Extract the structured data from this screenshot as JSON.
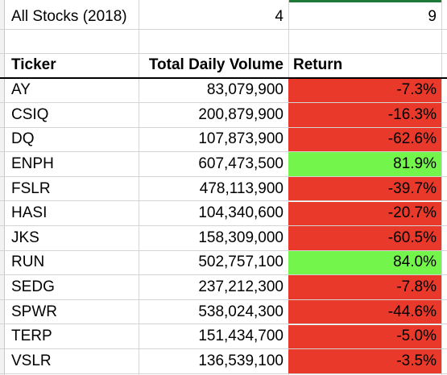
{
  "sheet": {
    "title_cell": "All Stocks (2018)",
    "cell_b1": "4",
    "cell_c1": "9",
    "headers": {
      "ticker": "Ticker",
      "volume": "Total Daily Volume",
      "return": "Return"
    },
    "rows": [
      {
        "ticker": "AY",
        "volume": "83,079,900",
        "return": "-7.3%",
        "status": "negative"
      },
      {
        "ticker": "CSIQ",
        "volume": "200,879,900",
        "return": "-16.3%",
        "status": "negative"
      },
      {
        "ticker": "DQ",
        "volume": "107,873,900",
        "return": "-62.6%",
        "status": "negative"
      },
      {
        "ticker": "ENPH",
        "volume": "607,473,500",
        "return": "81.9%",
        "status": "positive"
      },
      {
        "ticker": "FSLR",
        "volume": "478,113,900",
        "return": "-39.7%",
        "status": "negative"
      },
      {
        "ticker": "HASI",
        "volume": "104,340,600",
        "return": "-20.7%",
        "status": "negative"
      },
      {
        "ticker": "JKS",
        "volume": "158,309,000",
        "return": "-60.5%",
        "status": "negative"
      },
      {
        "ticker": "RUN",
        "volume": "502,757,100",
        "return": "84.0%",
        "status": "positive"
      },
      {
        "ticker": "SEDG",
        "volume": "237,212,300",
        "return": "-7.8%",
        "status": "negative"
      },
      {
        "ticker": "SPWR",
        "volume": "538,024,300",
        "return": "-44.6%",
        "status": "negative"
      },
      {
        "ticker": "TERP",
        "volume": "151,434,700",
        "return": "-5.0%",
        "status": "negative"
      },
      {
        "ticker": "VSLR",
        "volume": "136,539,100",
        "return": "-3.5%",
        "status": "negative"
      }
    ]
  },
  "colors": {
    "negative": "#e9392b",
    "positive": "#73f54b",
    "grid": "#d4d4d4",
    "selection": "#1f7a3a"
  }
}
